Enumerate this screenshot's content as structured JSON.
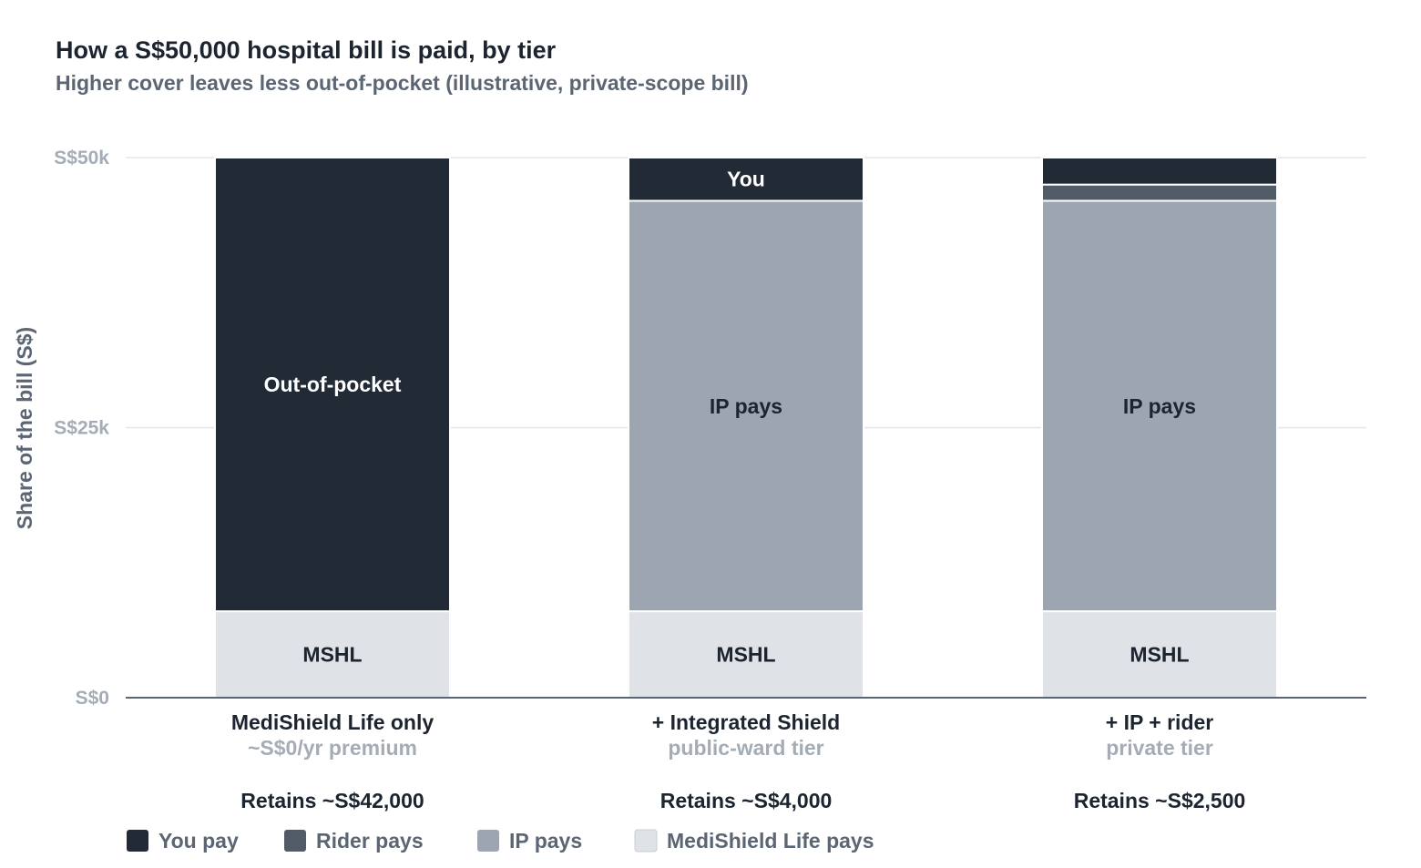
{
  "chart_data": {
    "type": "bar",
    "stacked": true,
    "title": "How a S$50,000 hospital bill is paid, by tier",
    "subtitle": "Higher cover leaves less out-of-pocket (illustrative, private-scope bill)",
    "ylabel": "Share of the bill (S$)",
    "ylim": [
      0,
      50000
    ],
    "yticks": [
      {
        "value": 0,
        "label": "S$0"
      },
      {
        "value": 25000,
        "label": "S$25k"
      },
      {
        "value": 50000,
        "label": "S$50k"
      }
    ],
    "grid": true,
    "legend_position": "bottom-left",
    "categories": [
      {
        "label": "MediShield Life only",
        "sub": "~S$0/yr premium",
        "retain": "Retains ~S$42,000"
      },
      {
        "label": "+ Integrated Shield",
        "sub": "public-ward tier",
        "retain": "Retains ~S$4,000"
      },
      {
        "label": "+ IP + rider",
        "sub": "private tier",
        "retain": "Retains ~S$2,500"
      }
    ],
    "series": [
      {
        "key": "mshl",
        "name": "MediShield Life pays",
        "color": "#dfe2e6",
        "text_color": "#1c2430",
        "values": [
          8000,
          8000,
          8000
        ],
        "segment_labels": [
          "MSHL",
          "MSHL",
          "MSHL"
        ]
      },
      {
        "key": "ip",
        "name": "IP pays",
        "color": "#9ca5b0",
        "text_color": "#1c2430",
        "values": [
          0,
          38000,
          38000
        ],
        "segment_labels": [
          "",
          "IP pays",
          "IP pays"
        ]
      },
      {
        "key": "rider",
        "name": "Rider pays",
        "color": "#525c68",
        "text_color": "#ffffff",
        "values": [
          0,
          0,
          1500
        ],
        "segment_labels": [
          "",
          "",
          ""
        ]
      },
      {
        "key": "you",
        "name": "You pay",
        "color": "#212a35",
        "text_color": "#ffffff",
        "values": [
          42000,
          4000,
          2500
        ],
        "segment_labels": [
          "Out-of-pocket",
          "You",
          ""
        ]
      }
    ],
    "legend_order": [
      "you",
      "rider",
      "ip",
      "mshl"
    ]
  }
}
